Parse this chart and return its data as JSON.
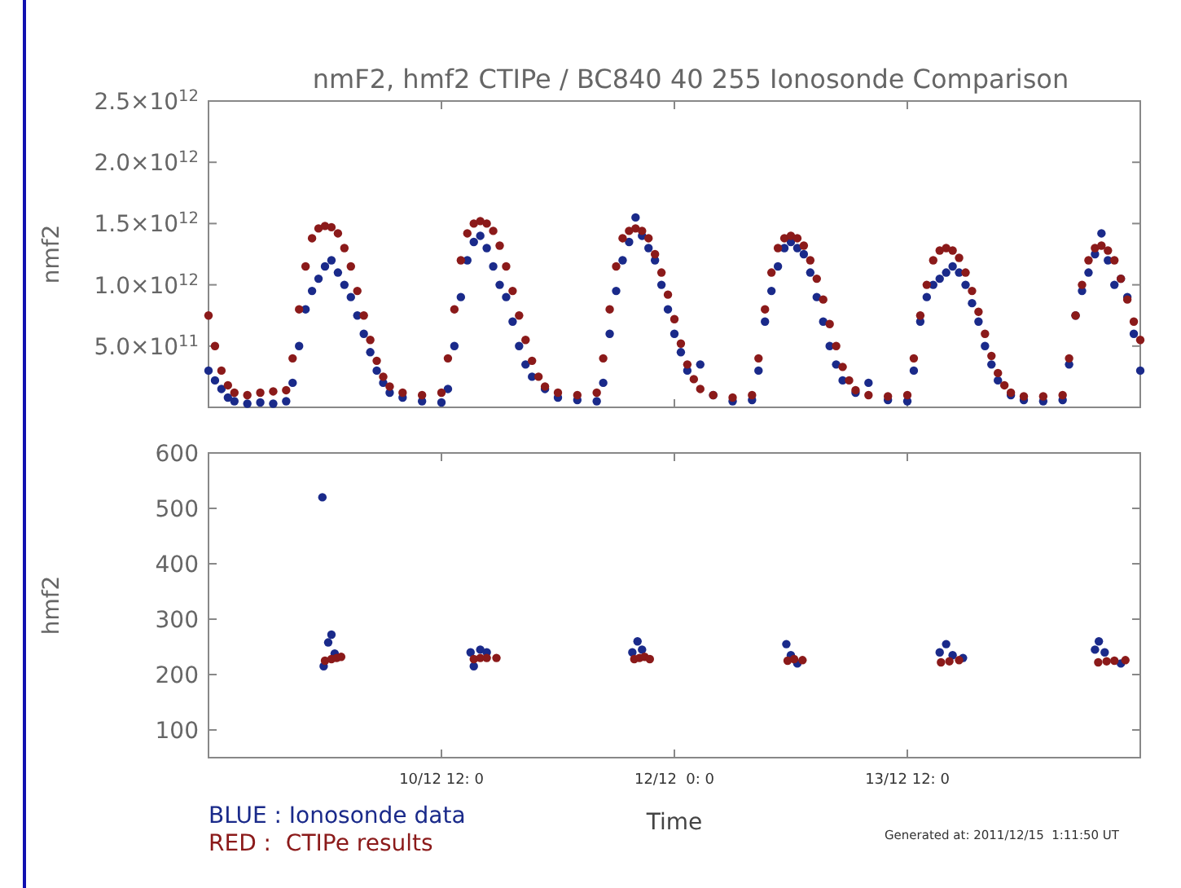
{
  "chart_data": [
    {
      "type": "scatter",
      "title": "nmF2, hmf2 CTIPe / BC840 40 255 Ionosonde Comparison",
      "ylabel": "nmf2",
      "xlim": [
        "2011-12-09T00:00",
        "2011-12-15T00:00"
      ],
      "xticks": [
        {
          "value": "2011-12-10T12:00",
          "label": null
        },
        {
          "value": "2011-12-12T00:00",
          "label": null
        },
        {
          "value": "2011-12-13T12:00",
          "label": null
        }
      ],
      "ylim": [
        0,
        2500000000000.0
      ],
      "yticks": [
        {
          "value": 500000000000.0,
          "label": "5.0×10$^{11}$"
        },
        {
          "value": 1000000000000.0,
          "label": "1.0×10$^{12}$"
        },
        {
          "value": 1500000000000.0,
          "label": "1.5×10$^{12}$"
        },
        {
          "value": 2000000000000.0,
          "label": "2.0×10$^{12}$"
        },
        {
          "value": 2500000000000.0,
          "label": "2.5×10$^{12}$"
        }
      ],
      "tick_labels": "y",
      "grid": false,
      "marker": "circle",
      "legend": false,
      "series": [
        {
          "color": "#1a2a8a",
          "x": [
            "2011-12-09T00:00",
            "2011-12-09T01:00",
            "2011-12-09T02:00",
            "2011-12-09T03:00",
            "2011-12-09T04:00",
            "2011-12-09T06:00",
            "2011-12-09T08:00",
            "2011-12-09T10:00",
            "2011-12-09T12:00",
            "2011-12-09T13:00",
            "2011-12-09T14:00",
            "2011-12-09T15:00",
            "2011-12-09T16:00",
            "2011-12-09T17:00",
            "2011-12-09T18:00",
            "2011-12-09T19:00",
            "2011-12-09T20:00",
            "2011-12-09T21:00",
            "2011-12-09T22:00",
            "2011-12-09T23:00",
            "2011-12-10T00:00",
            "2011-12-10T01:00",
            "2011-12-10T02:00",
            "2011-12-10T03:00",
            "2011-12-10T04:00",
            "2011-12-10T06:00",
            "2011-12-10T09:00",
            "2011-12-10T12:00",
            "2011-12-10T13:00",
            "2011-12-10T14:00",
            "2011-12-10T15:00",
            "2011-12-10T16:00",
            "2011-12-10T17:00",
            "2011-12-10T18:00",
            "2011-12-10T19:00",
            "2011-12-10T20:00",
            "2011-12-10T21:00",
            "2011-12-10T22:00",
            "2011-12-10T23:00",
            "2011-12-11T00:00",
            "2011-12-11T01:00",
            "2011-12-11T02:00",
            "2011-12-11T04:00",
            "2011-12-11T06:00",
            "2011-12-11T09:00",
            "2011-12-11T12:00",
            "2011-12-11T13:00",
            "2011-12-11T14:00",
            "2011-12-11T15:00",
            "2011-12-11T16:00",
            "2011-12-11T17:00",
            "2011-12-11T18:00",
            "2011-12-11T19:00",
            "2011-12-11T20:00",
            "2011-12-11T21:00",
            "2011-12-11T22:00",
            "2011-12-11T23:00",
            "2011-12-12T00:00",
            "2011-12-12T01:00",
            "2011-12-12T02:00",
            "2011-12-12T04:00",
            "2011-12-12T06:00",
            "2011-12-12T09:00",
            "2011-12-12T12:00",
            "2011-12-12T13:00",
            "2011-12-12T14:00",
            "2011-12-12T15:00",
            "2011-12-12T16:00",
            "2011-12-12T17:00",
            "2011-12-12T18:00",
            "2011-12-12T19:00",
            "2011-12-12T20:00",
            "2011-12-12T21:00",
            "2011-12-12T22:00",
            "2011-12-12T23:00",
            "2011-12-13T00:00",
            "2011-12-13T01:00",
            "2011-12-13T02:00",
            "2011-12-13T04:00",
            "2011-12-13T06:00",
            "2011-12-13T09:00",
            "2011-12-13T12:00",
            "2011-12-13T13:00",
            "2011-12-13T14:00",
            "2011-12-13T15:00",
            "2011-12-13T16:00",
            "2011-12-13T17:00",
            "2011-12-13T18:00",
            "2011-12-13T19:00",
            "2011-12-13T20:00",
            "2011-12-13T21:00",
            "2011-12-13T22:00",
            "2011-12-13T23:00",
            "2011-12-14T00:00",
            "2011-12-14T01:00",
            "2011-12-14T02:00",
            "2011-12-14T04:00",
            "2011-12-14T06:00",
            "2011-12-14T09:00",
            "2011-12-14T12:00",
            "2011-12-14T13:00",
            "2011-12-14T14:00",
            "2011-12-14T15:00",
            "2011-12-14T16:00",
            "2011-12-14T17:00",
            "2011-12-14T18:00",
            "2011-12-14T19:00",
            "2011-12-14T20:00",
            "2011-12-14T21:00",
            "2011-12-14T22:00",
            "2011-12-14T23:00",
            "2011-12-15T00:00"
          ],
          "values": [
            300000000000.0,
            220000000000.0,
            150000000000.0,
            80000000000.0,
            50000000000.0,
            30000000000.0,
            40000000000.0,
            30000000000.0,
            50000000000.0,
            200000000000.0,
            500000000000.0,
            800000000000.0,
            950000000000.0,
            1050000000000.0,
            1150000000000.0,
            1200000000000.0,
            1100000000000.0,
            1000000000000.0,
            900000000000.0,
            750000000000.0,
            600000000000.0,
            450000000000.0,
            300000000000.0,
            200000000000.0,
            120000000000.0,
            80000000000.0,
            50000000000.0,
            40000000000.0,
            150000000000.0,
            500000000000.0,
            900000000000.0,
            1200000000000.0,
            1350000000000.0,
            1400000000000.0,
            1300000000000.0,
            1150000000000.0,
            1000000000000.0,
            900000000000.0,
            700000000000.0,
            500000000000.0,
            350000000000.0,
            250000000000.0,
            150000000000.0,
            80000000000.0,
            60000000000.0,
            50000000000.0,
            200000000000.0,
            600000000000.0,
            950000000000.0,
            1200000000000.0,
            1350000000000.0,
            1550000000000.0,
            1400000000000.0,
            1300000000000.0,
            1200000000000.0,
            1000000000000.0,
            800000000000.0,
            600000000000.0,
            450000000000.0,
            300000000000.0,
            350000000000.0,
            100000000000.0,
            50000000000.0,
            60000000000.0,
            300000000000.0,
            700000000000.0,
            950000000000.0,
            1150000000000.0,
            1300000000000.0,
            1350000000000.0,
            1300000000000.0,
            1250000000000.0,
            1100000000000.0,
            900000000000.0,
            700000000000.0,
            500000000000.0,
            350000000000.0,
            220000000000.0,
            120000000000.0,
            200000000000.0,
            60000000000.0,
            50000000000.0,
            300000000000.0,
            700000000000.0,
            900000000000.0,
            1000000000000.0,
            1050000000000.0,
            1100000000000.0,
            1150000000000.0,
            1100000000000.0,
            1000000000000.0,
            850000000000.0,
            700000000000.0,
            500000000000.0,
            350000000000.0,
            220000000000.0,
            100000000000.0,
            60000000000.0,
            50000000000.0,
            60000000000.0,
            350000000000.0,
            750000000000.0,
            950000000000.0,
            1100000000000.0,
            1250000000000.0,
            1420000000000.0,
            1200000000000.0,
            1000000000000.0,
            1050000000000.0,
            900000000000.0,
            600000000000.0,
            300000000000.0
          ]
        },
        {
          "color": "#8b1a1a",
          "x": [
            "2011-12-09T00:00",
            "2011-12-09T01:00",
            "2011-12-09T02:00",
            "2011-12-09T03:00",
            "2011-12-09T04:00",
            "2011-12-09T06:00",
            "2011-12-09T08:00",
            "2011-12-09T10:00",
            "2011-12-09T12:00",
            "2011-12-09T13:00",
            "2011-12-09T14:00",
            "2011-12-09T15:00",
            "2011-12-09T16:00",
            "2011-12-09T17:00",
            "2011-12-09T18:00",
            "2011-12-09T19:00",
            "2011-12-09T20:00",
            "2011-12-09T21:00",
            "2011-12-09T22:00",
            "2011-12-09T23:00",
            "2011-12-10T00:00",
            "2011-12-10T01:00",
            "2011-12-10T02:00",
            "2011-12-10T03:00",
            "2011-12-10T04:00",
            "2011-12-10T06:00",
            "2011-12-10T09:00",
            "2011-12-10T12:00",
            "2011-12-10T13:00",
            "2011-12-10T14:00",
            "2011-12-10T15:00",
            "2011-12-10T16:00",
            "2011-12-10T17:00",
            "2011-12-10T18:00",
            "2011-12-10T19:00",
            "2011-12-10T20:00",
            "2011-12-10T21:00",
            "2011-12-10T22:00",
            "2011-12-10T23:00",
            "2011-12-11T00:00",
            "2011-12-11T01:00",
            "2011-12-11T02:00",
            "2011-12-11T03:00",
            "2011-12-11T04:00",
            "2011-12-11T06:00",
            "2011-12-11T09:00",
            "2011-12-11T12:00",
            "2011-12-11T13:00",
            "2011-12-11T14:00",
            "2011-12-11T15:00",
            "2011-12-11T16:00",
            "2011-12-11T17:00",
            "2011-12-11T18:00",
            "2011-12-11T19:00",
            "2011-12-11T20:00",
            "2011-12-11T21:00",
            "2011-12-11T22:00",
            "2011-12-11T23:00",
            "2011-12-12T00:00",
            "2011-12-12T01:00",
            "2011-12-12T02:00",
            "2011-12-12T03:00",
            "2011-12-12T04:00",
            "2011-12-12T06:00",
            "2011-12-12T09:00",
            "2011-12-12T12:00",
            "2011-12-12T13:00",
            "2011-12-12T14:00",
            "2011-12-12T15:00",
            "2011-12-12T16:00",
            "2011-12-12T17:00",
            "2011-12-12T18:00",
            "2011-12-12T19:00",
            "2011-12-12T20:00",
            "2011-12-12T21:00",
            "2011-12-12T22:00",
            "2011-12-12T23:00",
            "2011-12-13T00:00",
            "2011-12-13T01:00",
            "2011-12-13T02:00",
            "2011-12-13T03:00",
            "2011-12-13T04:00",
            "2011-12-13T06:00",
            "2011-12-13T09:00",
            "2011-12-13T12:00",
            "2011-12-13T13:00",
            "2011-12-13T14:00",
            "2011-12-13T15:00",
            "2011-12-13T16:00",
            "2011-12-13T17:00",
            "2011-12-13T18:00",
            "2011-12-13T19:00",
            "2011-12-13T20:00",
            "2011-12-13T21:00",
            "2011-12-13T22:00",
            "2011-12-13T23:00",
            "2011-12-14T00:00",
            "2011-12-14T01:00",
            "2011-12-14T02:00",
            "2011-12-14T03:00",
            "2011-12-14T04:00",
            "2011-12-14T06:00",
            "2011-12-14T09:00",
            "2011-12-14T12:00",
            "2011-12-14T13:00",
            "2011-12-14T14:00",
            "2011-12-14T15:00",
            "2011-12-14T16:00",
            "2011-12-14T17:00",
            "2011-12-14T18:00",
            "2011-12-14T19:00",
            "2011-12-14T20:00",
            "2011-12-14T21:00",
            "2011-12-14T22:00",
            "2011-12-14T23:00",
            "2011-12-15T00:00"
          ],
          "values": [
            750000000000.0,
            500000000000.0,
            300000000000.0,
            180000000000.0,
            120000000000.0,
            100000000000.0,
            120000000000.0,
            130000000000.0,
            140000000000.0,
            400000000000.0,
            800000000000.0,
            1150000000000.0,
            1380000000000.0,
            1460000000000.0,
            1480000000000.0,
            1470000000000.0,
            1420000000000.0,
            1300000000000.0,
            1150000000000.0,
            950000000000.0,
            750000000000.0,
            550000000000.0,
            380000000000.0,
            250000000000.0,
            170000000000.0,
            120000000000.0,
            100000000000.0,
            120000000000.0,
            400000000000.0,
            800000000000.0,
            1200000000000.0,
            1420000000000.0,
            1500000000000.0,
            1520000000000.0,
            1500000000000.0,
            1440000000000.0,
            1320000000000.0,
            1150000000000.0,
            950000000000.0,
            750000000000.0,
            550000000000.0,
            380000000000.0,
            250000000000.0,
            170000000000.0,
            120000000000.0,
            100000000000.0,
            120000000000.0,
            400000000000.0,
            800000000000.0,
            1150000000000.0,
            1380000000000.0,
            1440000000000.0,
            1460000000000.0,
            1440000000000.0,
            1380000000000.0,
            1250000000000.0,
            1100000000000.0,
            920000000000.0,
            720000000000.0,
            520000000000.0,
            350000000000.0,
            230000000000.0,
            150000000000.0,
            100000000000.0,
            80000000000.0,
            100000000000.0,
            400000000000.0,
            800000000000.0,
            1100000000000.0,
            1300000000000.0,
            1380000000000.0,
            1400000000000.0,
            1380000000000.0,
            1320000000000.0,
            1200000000000.0,
            1050000000000.0,
            880000000000.0,
            680000000000.0,
            500000000000.0,
            330000000000.0,
            220000000000.0,
            140000000000.0,
            100000000000.0,
            90000000000.0,
            100000000000.0,
            400000000000.0,
            750000000000.0,
            1000000000000.0,
            1200000000000.0,
            1280000000000.0,
            1300000000000.0,
            1280000000000.0,
            1220000000000.0,
            1100000000000.0,
            950000000000.0,
            780000000000.0,
            600000000000.0,
            420000000000.0,
            280000000000.0,
            180000000000.0,
            120000000000.0,
            90000000000.0,
            90000000000.0,
            100000000000.0,
            400000000000.0,
            750000000000.0,
            1000000000000.0,
            1200000000000.0,
            1300000000000.0,
            1320000000000.0,
            1280000000000.0,
            1200000000000.0,
            1050000000000.0,
            880000000000.0,
            700000000000.0,
            550000000000.0
          ]
        }
      ]
    },
    {
      "type": "scatter",
      "xlabel": "Time",
      "ylabel": "hmf2",
      "xlim": [
        "2011-12-09T00:00",
        "2011-12-15T00:00"
      ],
      "xticks": [
        {
          "value": "2011-12-10T12:00",
          "label": "10/12 12: 0"
        },
        {
          "value": "2011-12-12T00:00",
          "label": "12/12  0: 0"
        },
        {
          "value": "2011-12-13T12:00",
          "label": "13/12 12: 0"
        }
      ],
      "ylim": [
        50,
        600
      ],
      "yticks": [
        100,
        200,
        300,
        400,
        500,
        600
      ],
      "grid": false,
      "marker": "circle",
      "legend": "bottom left",
      "annotations": [
        "Generated at: 2011/12/15  1:11:50 UT"
      ],
      "series": [
        {
          "name": "BLUE : Ionosonde data",
          "color": "#1a2a8a",
          "x": [
            "2011-12-09T17:36",
            "2011-12-09T17:48",
            "2011-12-09T18:30",
            "2011-12-09T19:00",
            "2011-12-09T19:30",
            "2011-12-10T16:30",
            "2011-12-10T17:00",
            "2011-12-10T18:00",
            "2011-12-10T19:00",
            "2011-12-11T17:30",
            "2011-12-11T18:18",
            "2011-12-11T19:00",
            "2011-12-12T17:18",
            "2011-12-12T18:00",
            "2011-12-12T19:00",
            "2011-12-13T17:00",
            "2011-12-13T18:00",
            "2011-12-13T19:00",
            "2011-12-13T20:36",
            "2011-12-14T17:00",
            "2011-12-14T17:36",
            "2011-12-14T18:30",
            "2011-12-14T21:00"
          ],
          "values": [
            520,
            215,
            258,
            272,
            238,
            240,
            215,
            245,
            240,
            240,
            260,
            245,
            255,
            235,
            220,
            240,
            255,
            235,
            230,
            245,
            260,
            240,
            220
          ]
        },
        {
          "name": "RED :  CTIPe results",
          "color": "#8b1a1a",
          "x": [
            "2011-12-09T18:00",
            "2011-12-09T19:00",
            "2011-12-09T19:48",
            "2011-12-09T20:30",
            "2011-12-10T17:00",
            "2011-12-10T18:00",
            "2011-12-10T19:00",
            "2011-12-10T20:30",
            "2011-12-11T17:48",
            "2011-12-11T18:36",
            "2011-12-11T19:24",
            "2011-12-11T20:12",
            "2011-12-12T17:30",
            "2011-12-12T18:30",
            "2011-12-12T19:48",
            "2011-12-13T17:12",
            "2011-12-13T18:30",
            "2011-12-13T20:00",
            "2011-12-14T17:30",
            "2011-12-14T18:48",
            "2011-12-14T20:00",
            "2011-12-14T21:42"
          ],
          "values": [
            225,
            228,
            230,
            232,
            228,
            230,
            230,
            230,
            228,
            230,
            232,
            228,
            225,
            228,
            226,
            222,
            224,
            226,
            222,
            224,
            225,
            226
          ]
        }
      ]
    }
  ]
}
